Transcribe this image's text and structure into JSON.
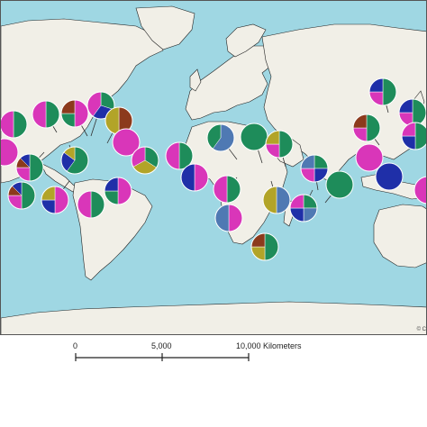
{
  "colors": {
    "ocean": "#9fd7e3",
    "land": "#f1efe7",
    "border": "#222222",
    "slice_green": "#1e8c5a",
    "slice_magenta": "#d936b9",
    "slice_blue": "#1f2fa8",
    "slice_olive": "#b2a428",
    "slice_brown": "#8c3a1c",
    "slice_steel": "#4f79b3",
    "leader_line": "#333333"
  },
  "scale_bar": {
    "label_0": "0",
    "label_mid": "5,000",
    "label_end": "10,000 Kilometers"
  },
  "attribution": "© C",
  "chart_data": {
    "type": "pie",
    "title": "",
    "description_note": "",
    "pies": [
      {
        "id": "c01",
        "slices": [
          {
            "color": "slice_green",
            "value": 50
          },
          {
            "color": "slice_magenta",
            "value": 50
          }
        ]
      },
      {
        "id": "c02",
        "slices": [
          {
            "color": "slice_magenta",
            "value": 100
          }
        ]
      },
      {
        "id": "c03",
        "slices": [
          {
            "color": "slice_green",
            "value": 50
          },
          {
            "color": "slice_magenta",
            "value": 50
          }
        ]
      },
      {
        "id": "c04",
        "slices": [
          {
            "color": "slice_magenta",
            "value": 50
          },
          {
            "color": "slice_green",
            "value": 25
          },
          {
            "color": "slice_brown",
            "value": 25
          }
        ]
      },
      {
        "id": "c05",
        "slices": [
          {
            "color": "slice_green",
            "value": 30
          },
          {
            "color": "slice_blue",
            "value": 30
          },
          {
            "color": "slice_magenta",
            "value": 40
          }
        ]
      },
      {
        "id": "c06",
        "slices": [
          {
            "color": "slice_brown",
            "value": 50
          },
          {
            "color": "slice_olive",
            "value": 50
          }
        ]
      },
      {
        "id": "c07",
        "slices": [
          {
            "color": "slice_green",
            "value": 50
          },
          {
            "color": "slice_magenta",
            "value": 25
          },
          {
            "color": "slice_brown",
            "value": 12.5
          },
          {
            "color": "slice_blue",
            "value": 12.5
          }
        ]
      },
      {
        "id": "c08",
        "slices": [
          {
            "color": "slice_magenta",
            "value": 100
          }
        ]
      },
      {
        "id": "c09",
        "slices": [
          {
            "color": "slice_green",
            "value": 34
          },
          {
            "color": "slice_olive",
            "value": 33
          },
          {
            "color": "slice_magenta",
            "value": 33
          }
        ]
      },
      {
        "id": "c10",
        "slices": [
          {
            "color": "slice_green",
            "value": 60
          },
          {
            "color": "slice_blue",
            "value": 25
          },
          {
            "color": "slice_olive",
            "value": 15
          }
        ]
      },
      {
        "id": "c11",
        "slices": [
          {
            "color": "slice_green",
            "value": 50
          },
          {
            "color": "slice_magenta",
            "value": 25
          },
          {
            "color": "slice_brown",
            "value": 12.5
          },
          {
            "color": "slice_blue",
            "value": 12.5
          }
        ]
      },
      {
        "id": "c12",
        "slices": [
          {
            "color": "slice_magenta",
            "value": 50
          },
          {
            "color": "slice_blue",
            "value": 25
          },
          {
            "color": "slice_olive",
            "value": 25
          }
        ]
      },
      {
        "id": "c13",
        "slices": [
          {
            "color": "slice_green",
            "value": 50
          },
          {
            "color": "slice_magenta",
            "value": 50
          }
        ]
      },
      {
        "id": "c14",
        "slices": [
          {
            "color": "slice_magenta",
            "value": 50
          },
          {
            "color": "slice_green",
            "value": 25
          },
          {
            "color": "slice_blue",
            "value": 25
          }
        ]
      },
      {
        "id": "c15",
        "slices": [
          {
            "color": "slice_green",
            "value": 50
          },
          {
            "color": "slice_magenta",
            "value": 50
          }
        ]
      },
      {
        "id": "c16",
        "slices": [
          {
            "color": "slice_steel",
            "value": 60
          },
          {
            "color": "slice_green",
            "value": 40
          }
        ]
      },
      {
        "id": "c17",
        "slices": [
          {
            "color": "slice_magenta",
            "value": 50
          },
          {
            "color": "slice_blue",
            "value": 50
          }
        ]
      },
      {
        "id": "c18",
        "slices": [
          {
            "color": "slice_green",
            "value": 100
          }
        ]
      },
      {
        "id": "c19",
        "slices": [
          {
            "color": "slice_green",
            "value": 50
          },
          {
            "color": "slice_magenta",
            "value": 25
          },
          {
            "color": "slice_olive",
            "value": 25
          }
        ]
      },
      {
        "id": "c20",
        "slices": [
          {
            "color": "slice_green",
            "value": 50
          },
          {
            "color": "slice_magenta",
            "value": 50
          }
        ]
      },
      {
        "id": "c21",
        "slices": [
          {
            "color": "slice_magenta",
            "value": 50
          },
          {
            "color": "slice_steel",
            "value": 50
          }
        ]
      },
      {
        "id": "c22",
        "slices": [
          {
            "color": "slice_steel",
            "value": 50
          },
          {
            "color": "slice_olive",
            "value": 50
          }
        ]
      },
      {
        "id": "c23",
        "slices": [
          {
            "color": "slice_green",
            "value": 25
          },
          {
            "color": "slice_steel",
            "value": 25
          },
          {
            "color": "slice_blue",
            "value": 25
          },
          {
            "color": "slice_magenta",
            "value": 25
          }
        ]
      },
      {
        "id": "c24",
        "slices": [
          {
            "color": "slice_green",
            "value": 25
          },
          {
            "color": "slice_blue",
            "value": 25
          },
          {
            "color": "slice_magenta",
            "value": 25
          },
          {
            "color": "slice_steel",
            "value": 25
          }
        ]
      },
      {
        "id": "c25",
        "slices": [
          {
            "color": "slice_green",
            "value": 100
          }
        ]
      },
      {
        "id": "c26",
        "slices": [
          {
            "color": "slice_green",
            "value": 50
          },
          {
            "color": "slice_olive",
            "value": 25
          },
          {
            "color": "slice_brown",
            "value": 25
          }
        ]
      },
      {
        "id": "c27",
        "slices": [
          {
            "color": "slice_green",
            "value": 50
          },
          {
            "color": "slice_magenta",
            "value": 25
          },
          {
            "color": "slice_blue",
            "value": 25
          }
        ]
      },
      {
        "id": "c28",
        "slices": [
          {
            "color": "slice_green",
            "value": 50
          },
          {
            "color": "slice_magenta",
            "value": 25
          },
          {
            "color": "slice_brown",
            "value": 25
          }
        ]
      },
      {
        "id": "c29",
        "slices": [
          {
            "color": "slice_magenta",
            "value": 100
          }
        ]
      },
      {
        "id": "c30",
        "slices": [
          {
            "color": "slice_blue",
            "value": 100
          }
        ]
      },
      {
        "id": "c31",
        "slices": [
          {
            "color": "slice_green",
            "value": 50
          },
          {
            "color": "slice_magenta",
            "value": 25
          },
          {
            "color": "slice_blue",
            "value": 25
          }
        ]
      },
      {
        "id": "c32",
        "slices": [
          {
            "color": "slice_green",
            "value": 50
          },
          {
            "color": "slice_blue",
            "value": 25
          },
          {
            "color": "slice_magenta",
            "value": 25
          }
        ]
      },
      {
        "id": "c33",
        "slices": [
          {
            "color": "slice_magenta",
            "value": 100
          }
        ]
      }
    ]
  }
}
